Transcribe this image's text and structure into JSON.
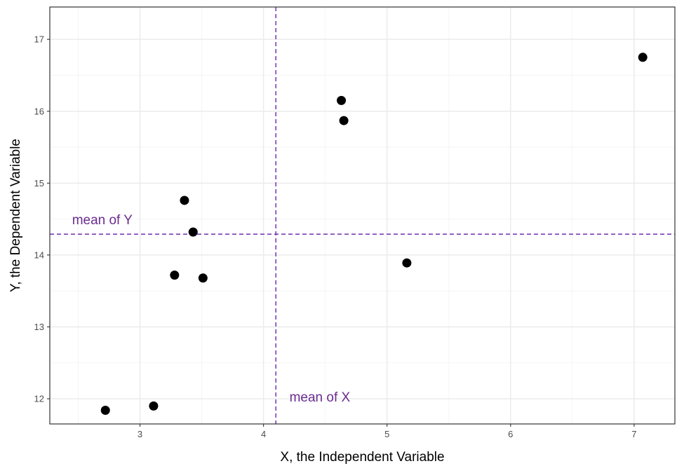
{
  "chart_data": {
    "type": "scatter",
    "xlabel": "X, the Independent Variable",
    "ylabel": "Y, the Dependent Variable",
    "xlim": [
      2.27,
      7.33
    ],
    "ylim": [
      11.65,
      17.45
    ],
    "x_ticks": [
      3,
      4,
      5,
      6,
      7
    ],
    "y_ticks": [
      12,
      13,
      14,
      15,
      16,
      17
    ],
    "grid": true,
    "points": [
      {
        "x": 2.72,
        "y": 11.84
      },
      {
        "x": 3.11,
        "y": 11.9
      },
      {
        "x": 3.28,
        "y": 13.72
      },
      {
        "x": 3.36,
        "y": 14.76
      },
      {
        "x": 3.43,
        "y": 14.32
      },
      {
        "x": 3.51,
        "y": 13.68
      },
      {
        "x": 4.63,
        "y": 16.15
      },
      {
        "x": 4.65,
        "y": 15.87
      },
      {
        "x": 5.16,
        "y": 13.89
      },
      {
        "x": 7.07,
        "y": 16.75
      }
    ],
    "mean_x": 4.1,
    "mean_y": 14.29,
    "annotations": [
      {
        "text": "mean of Y",
        "x": 2.45,
        "y": 14.43
      },
      {
        "text": "mean of X",
        "x": 4.21,
        "y": 11.96
      }
    ],
    "colors": {
      "points": "#000000",
      "mean_lines": "#7b3fb5",
      "annotation_text": "#6a2c91",
      "grid_major": "#ebebeb",
      "grid_minor": "#f5f5f5",
      "panel_border": "#333333"
    }
  }
}
